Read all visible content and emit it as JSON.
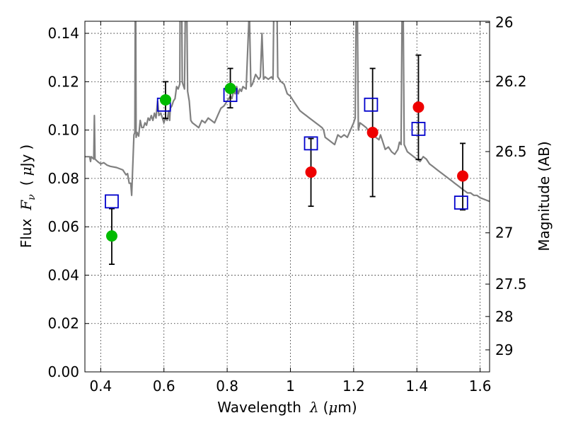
{
  "chart_data": {
    "type": "scatter",
    "xlabel": "Wavelength  λ (μm)",
    "ylabel": "Flux  F_ν  ( μJy )",
    "ylabel_parts": {
      "prefix": "Flux",
      "var": "F",
      "sub": "ν",
      "open": "(",
      "unit_mu": "μ",
      "unit": "Jy",
      "close": ")"
    },
    "xlabel_parts": {
      "prefix": "Wavelength",
      "var": "λ",
      "open": "(",
      "unit_mu": "μ",
      "unit": "m)"
    },
    "y2label": "Magnitude (AB)",
    "xlim": [
      0.35,
      1.63
    ],
    "ylim": [
      0.0,
      0.145
    ],
    "grid": true,
    "x_ticks": [
      0.4,
      0.6,
      0.8,
      1.0,
      1.2,
      1.4,
      1.6
    ],
    "x_tick_labels": [
      "0.4",
      "0.6",
      "0.8",
      "1",
      "1.2",
      "1.4",
      "1.6"
    ],
    "y_ticks": [
      0.0,
      0.02,
      0.04,
      0.06,
      0.08,
      0.1,
      0.12,
      0.14
    ],
    "y_tick_labels": [
      "0.00",
      "0.02",
      "0.04",
      "0.06",
      "0.08",
      "0.10",
      "0.12",
      "0.14"
    ],
    "y2_ticks": [
      {
        "label": "26",
        "flux": 0.1445
      },
      {
        "label": "26.2",
        "flux": 0.1201
      },
      {
        "label": "26.5",
        "flux": 0.0911
      },
      {
        "label": "27",
        "flux": 0.0575
      },
      {
        "label": "27.5",
        "flux": 0.0363
      },
      {
        "label": "28",
        "flux": 0.0229
      },
      {
        "label": "29",
        "flux": 0.0091
      }
    ],
    "colors": {
      "model_line": "#808080",
      "model_box": "#0000cc",
      "green_point": "#00bb00",
      "red_point": "#ee0000",
      "errorbar": "#000000"
    },
    "series": [
      {
        "name": "model spectrum",
        "kind": "line",
        "points": [
          [
            0.35,
            0.089
          ],
          [
            0.365,
            0.089
          ],
          [
            0.368,
            0.087
          ],
          [
            0.37,
            0.089
          ],
          [
            0.378,
            0.088
          ],
          [
            0.38,
            0.106
          ],
          [
            0.382,
            0.088
          ],
          [
            0.39,
            0.087
          ],
          [
            0.4,
            0.086
          ],
          [
            0.41,
            0.0865
          ],
          [
            0.42,
            0.0855
          ],
          [
            0.43,
            0.085
          ],
          [
            0.45,
            0.0845
          ],
          [
            0.47,
            0.0835
          ],
          [
            0.48,
            0.0815
          ],
          [
            0.485,
            0.082
          ],
          [
            0.49,
            0.078
          ],
          [
            0.495,
            0.078
          ],
          [
            0.498,
            0.073
          ],
          [
            0.5,
            0.08
          ],
          [
            0.505,
            0.098
          ],
          [
            0.508,
            0.099
          ],
          [
            0.51,
            0.18
          ],
          [
            0.512,
            0.097
          ],
          [
            0.515,
            0.099
          ],
          [
            0.52,
            0.0975
          ],
          [
            0.525,
            0.104
          ],
          [
            0.53,
            0.101
          ],
          [
            0.535,
            0.101
          ],
          [
            0.54,
            0.103
          ],
          [
            0.545,
            0.102
          ],
          [
            0.55,
            0.105
          ],
          [
            0.555,
            0.104
          ],
          [
            0.56,
            0.106
          ],
          [
            0.565,
            0.104
          ],
          [
            0.57,
            0.107
          ],
          [
            0.575,
            0.105
          ],
          [
            0.58,
            0.112
          ],
          [
            0.584,
            0.106
          ],
          [
            0.59,
            0.107
          ],
          [
            0.595,
            0.105
          ],
          [
            0.6,
            0.103
          ],
          [
            0.602,
            0.104
          ],
          [
            0.605,
            0.105
          ],
          [
            0.61,
            0.104
          ],
          [
            0.615,
            0.108
          ],
          [
            0.618,
            0.104
          ],
          [
            0.62,
            0.109
          ],
          [
            0.625,
            0.11
          ],
          [
            0.63,
            0.112
          ],
          [
            0.635,
            0.113
          ],
          [
            0.64,
            0.118
          ],
          [
            0.645,
            0.117
          ],
          [
            0.65,
            0.119
          ],
          [
            0.652,
            0.18
          ],
          [
            0.655,
            0.18
          ],
          [
            0.658,
            0.12
          ],
          [
            0.66,
            0.119
          ],
          [
            0.665,
            0.117
          ],
          [
            0.67,
            0.18
          ],
          [
            0.675,
            0.116
          ],
          [
            0.68,
            0.112
          ],
          [
            0.685,
            0.104
          ],
          [
            0.69,
            0.103
          ],
          [
            0.7,
            0.102
          ],
          [
            0.71,
            0.101
          ],
          [
            0.72,
            0.104
          ],
          [
            0.73,
            0.103
          ],
          [
            0.74,
            0.105
          ],
          [
            0.75,
            0.104
          ],
          [
            0.76,
            0.103
          ],
          [
            0.77,
            0.106
          ],
          [
            0.78,
            0.109
          ],
          [
            0.79,
            0.11
          ],
          [
            0.8,
            0.112
          ],
          [
            0.805,
            0.113
          ],
          [
            0.81,
            0.114
          ],
          [
            0.815,
            0.113
          ],
          [
            0.82,
            0.116
          ],
          [
            0.825,
            0.115
          ],
          [
            0.83,
            0.118
          ],
          [
            0.835,
            0.115
          ],
          [
            0.84,
            0.117
          ],
          [
            0.845,
            0.116
          ],
          [
            0.85,
            0.118
          ],
          [
            0.86,
            0.117
          ],
          [
            0.87,
            0.15
          ],
          [
            0.875,
            0.118
          ],
          [
            0.88,
            0.119
          ],
          [
            0.89,
            0.123
          ],
          [
            0.9,
            0.121
          ],
          [
            0.905,
            0.122
          ],
          [
            0.91,
            0.14
          ],
          [
            0.915,
            0.121
          ],
          [
            0.92,
            0.122
          ],
          [
            0.93,
            0.121
          ],
          [
            0.94,
            0.122
          ],
          [
            0.945,
            0.121
          ],
          [
            0.95,
            0.18
          ],
          [
            0.955,
            0.18
          ],
          [
            0.96,
            0.122
          ],
          [
            0.97,
            0.12
          ],
          [
            0.98,
            0.119
          ],
          [
            0.99,
            0.115
          ],
          [
            1.0,
            0.114
          ],
          [
            1.01,
            0.112
          ],
          [
            1.02,
            0.11
          ],
          [
            1.03,
            0.108
          ],
          [
            1.04,
            0.107
          ],
          [
            1.05,
            0.106
          ],
          [
            1.06,
            0.105
          ],
          [
            1.07,
            0.104
          ],
          [
            1.08,
            0.103
          ],
          [
            1.09,
            0.102
          ],
          [
            1.1,
            0.101
          ],
          [
            1.105,
            0.1
          ],
          [
            1.11,
            0.097
          ],
          [
            1.12,
            0.096
          ],
          [
            1.13,
            0.095
          ],
          [
            1.14,
            0.094
          ],
          [
            1.15,
            0.098
          ],
          [
            1.16,
            0.097
          ],
          [
            1.17,
            0.098
          ],
          [
            1.18,
            0.097
          ],
          [
            1.19,
            0.1
          ],
          [
            1.2,
            0.103
          ],
          [
            1.205,
            0.105
          ],
          [
            1.21,
            0.18
          ],
          [
            1.215,
            0.1
          ],
          [
            1.22,
            0.103
          ],
          [
            1.23,
            0.102
          ],
          [
            1.24,
            0.101
          ],
          [
            1.25,
            0.099
          ],
          [
            1.26,
            0.098
          ],
          [
            1.27,
            0.097
          ],
          [
            1.28,
            0.096
          ],
          [
            1.285,
            0.098
          ],
          [
            1.29,
            0.096
          ],
          [
            1.3,
            0.092
          ],
          [
            1.31,
            0.093
          ],
          [
            1.32,
            0.091
          ],
          [
            1.33,
            0.09
          ],
          [
            1.34,
            0.092
          ],
          [
            1.345,
            0.095
          ],
          [
            1.35,
            0.094
          ],
          [
            1.355,
            0.18
          ],
          [
            1.36,
            0.094
          ],
          [
            1.37,
            0.091
          ],
          [
            1.38,
            0.09
          ],
          [
            1.39,
            0.089
          ],
          [
            1.4,
            0.088
          ],
          [
            1.41,
            0.087
          ],
          [
            1.42,
            0.089
          ],
          [
            1.43,
            0.088
          ],
          [
            1.44,
            0.086
          ],
          [
            1.45,
            0.085
          ],
          [
            1.46,
            0.084
          ],
          [
            1.47,
            0.083
          ],
          [
            1.48,
            0.082
          ],
          [
            1.49,
            0.081
          ],
          [
            1.5,
            0.08
          ],
          [
            1.51,
            0.079
          ],
          [
            1.52,
            0.078
          ],
          [
            1.53,
            0.077
          ],
          [
            1.54,
            0.076
          ],
          [
            1.55,
            0.075
          ],
          [
            1.56,
            0.074
          ],
          [
            1.57,
            0.074
          ],
          [
            1.58,
            0.073
          ],
          [
            1.59,
            0.073
          ],
          [
            1.6,
            0.072
          ],
          [
            1.61,
            0.0715
          ],
          [
            1.62,
            0.071
          ],
          [
            1.63,
            0.0705
          ]
        ]
      },
      {
        "name": "model photometry",
        "kind": "open-square",
        "points": [
          [
            0.435,
            0.0705
          ],
          [
            0.6,
            0.1105
          ],
          [
            0.81,
            0.1145
          ],
          [
            1.065,
            0.0945
          ],
          [
            1.255,
            0.1105
          ],
          [
            1.405,
            0.1005
          ],
          [
            1.54,
            0.07
          ]
        ]
      },
      {
        "name": "observed (green)",
        "kind": "filled-circle",
        "points": [
          {
            "x": 0.435,
            "y": 0.0562,
            "err": [
              0.0445,
              0.0675
            ]
          },
          {
            "x": 0.605,
            "y": 0.1125,
            "err": [
              0.1048,
              0.12
            ]
          },
          {
            "x": 0.81,
            "y": 0.1172,
            "err": [
              0.1092,
              0.1255
            ]
          }
        ]
      },
      {
        "name": "observed (red)",
        "kind": "filled-circle",
        "points": [
          {
            "x": 1.065,
            "y": 0.0826,
            "err": [
              0.0685,
              0.0965
            ]
          },
          {
            "x": 1.26,
            "y": 0.099,
            "err": [
              0.0725,
              0.1255
            ]
          },
          {
            "x": 1.405,
            "y": 0.1095,
            "err": [
              0.0878,
              0.131
            ]
          },
          {
            "x": 1.545,
            "y": 0.081,
            "err": [
              0.067,
              0.0945
            ]
          }
        ]
      }
    ]
  }
}
